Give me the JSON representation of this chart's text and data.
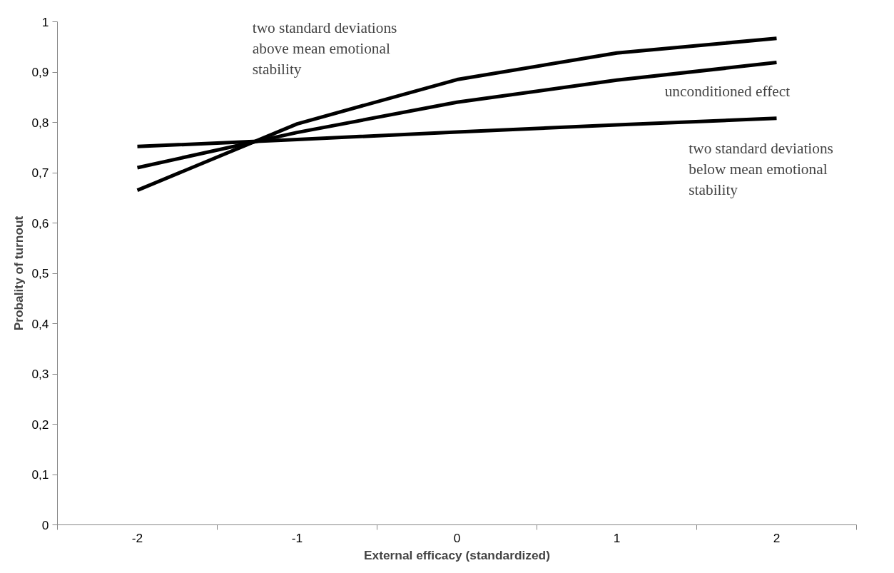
{
  "chart_data": {
    "type": "line",
    "xlabel": "External efficacy (standardized)",
    "ylabel": "Probality of turnout",
    "categories": [
      "-2",
      "-1",
      "0",
      "1",
      "2"
    ],
    "series": [
      {
        "color": "#000000",
        "values": [
          0.665,
          0.797,
          0.885,
          0.938,
          0.967
        ]
      },
      {
        "color": "#000000",
        "values": [
          0.71,
          0.78,
          0.84,
          0.884,
          0.919
        ]
      },
      {
        "color": "#000000",
        "values": [
          0.752,
          0.766,
          0.781,
          0.795,
          0.808
        ]
      }
    ],
    "ylim": [
      0,
      1
    ],
    "yticks": [
      0,
      {
        "value": 0.1,
        "label": "0,1"
      },
      {
        "value": 0.2,
        "label": "0,2"
      },
      {
        "value": 0.3,
        "label": "0,3"
      },
      {
        "value": 0.4,
        "label": "0,4"
      },
      {
        "value": 0.5,
        "label": "0,5"
      },
      {
        "value": 0.6,
        "label": "0,6"
      },
      {
        "value": 0.7,
        "label": "0,7"
      },
      {
        "value": 0.8,
        "label": "0,8"
      },
      {
        "value": 0.9,
        "label": "0,9"
      },
      1
    ],
    "annotations": [
      "two standard deviations\nabove mean emotional\nstability",
      "unconditioned effect",
      "two standard deviations\nbelow mean emotional\nstability"
    ],
    "grid": false,
    "marker": "none",
    "line_style": "solid"
  }
}
